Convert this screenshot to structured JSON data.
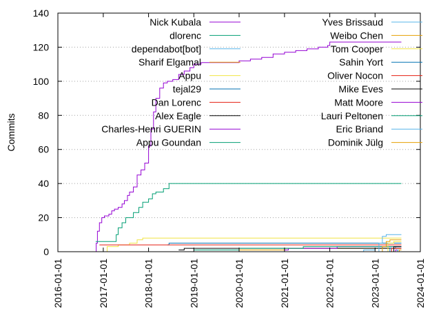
{
  "chart_data": {
    "type": "line",
    "title": "",
    "xlabel": "",
    "ylabel": "Commits",
    "xlim": [
      "2016-01-01",
      "2024-01-01"
    ],
    "ylim": [
      0,
      140
    ],
    "xticks": [
      "2016-01-01",
      "2017-01-01",
      "2018-01-01",
      "2019-01-01",
      "2020-01-01",
      "2021-01-01",
      "2022-01-01",
      "2023-01-01",
      "2024-01-01"
    ],
    "yticks": [
      0,
      20,
      40,
      60,
      80,
      100,
      120,
      140
    ],
    "grid": "horizontal dotted",
    "legend": "inside, top",
    "series": [
      {
        "name": "Nick Kubala",
        "color": "#9400d3",
        "points": [
          [
            "2016-11-01",
            0
          ],
          [
            "2016-11-05",
            5
          ],
          [
            "2016-11-15",
            12
          ],
          [
            "2016-12-01",
            17
          ],
          [
            "2016-12-20",
            20
          ],
          [
            "2017-01-10",
            21
          ],
          [
            "2017-02-15",
            22
          ],
          [
            "2017-03-10",
            24
          ],
          [
            "2017-04-01",
            25
          ],
          [
            "2017-05-01",
            26
          ],
          [
            "2017-06-01",
            28
          ],
          [
            "2017-06-20",
            30
          ],
          [
            "2017-07-15",
            33
          ],
          [
            "2017-08-01",
            35
          ],
          [
            "2017-09-01",
            38
          ],
          [
            "2017-10-01",
            45
          ],
          [
            "2017-11-01",
            48
          ],
          [
            "2017-12-01",
            52
          ],
          [
            "2018-01-01",
            62
          ],
          [
            "2018-01-20",
            72
          ],
          [
            "2018-02-10",
            82
          ],
          [
            "2018-03-01",
            90
          ],
          [
            "2018-04-01",
            96
          ],
          [
            "2018-05-01",
            99
          ],
          [
            "2018-06-01",
            100
          ],
          [
            "2018-07-15",
            101
          ],
          [
            "2018-09-01",
            104
          ],
          [
            "2018-10-15",
            106
          ],
          [
            "2018-12-01",
            108
          ],
          [
            "2019-01-01",
            110
          ],
          [
            "2019-03-01",
            111
          ],
          [
            "2019-06-01",
            111
          ],
          [
            "2019-10-01",
            111
          ],
          [
            "2020-01-01",
            112
          ],
          [
            "2020-04-01",
            113
          ],
          [
            "2020-07-01",
            114
          ],
          [
            "2020-10-01",
            116
          ],
          [
            "2021-01-01",
            117
          ],
          [
            "2021-04-01",
            118
          ],
          [
            "2021-07-01",
            119
          ],
          [
            "2021-10-01",
            120
          ],
          [
            "2021-12-15",
            121
          ],
          [
            "2022-01-01",
            123
          ],
          [
            "2022-05-01",
            123
          ],
          [
            "2023-03-01",
            123
          ],
          [
            "2023-08-01",
            123
          ]
        ]
      },
      {
        "name": "dlorenc",
        "color": "#009e73",
        "points": [
          [
            "2016-11-01",
            6
          ],
          [
            "2017-04-01",
            6
          ],
          [
            "2017-04-15",
            10
          ],
          [
            "2017-05-01",
            14
          ],
          [
            "2017-06-01",
            17
          ],
          [
            "2017-07-01",
            20
          ],
          [
            "2017-09-01",
            23
          ],
          [
            "2017-10-15",
            26
          ],
          [
            "2017-11-15",
            29
          ],
          [
            "2018-01-01",
            31
          ],
          [
            "2018-02-01",
            34
          ],
          [
            "2018-03-01",
            35
          ],
          [
            "2018-05-01",
            37
          ],
          [
            "2018-06-15",
            40
          ],
          [
            "2019-06-01",
            40
          ],
          [
            "2023-08-01",
            40
          ]
        ]
      },
      {
        "name": "dependabot[bot]",
        "color": "#56b4e9",
        "points": [
          [
            "2022-06-01",
            0
          ],
          [
            "2022-10-01",
            1
          ],
          [
            "2023-01-01",
            2
          ],
          [
            "2023-03-01",
            3
          ],
          [
            "2023-05-01",
            3
          ],
          [
            "2023-08-01",
            3
          ]
        ]
      },
      {
        "name": "Sharif Elgamal",
        "color": "#e69f00",
        "points": [
          [
            "2019-04-01",
            1
          ],
          [
            "2020-06-01",
            1
          ],
          [
            "2021-01-01",
            2
          ],
          [
            "2022-01-01",
            2
          ],
          [
            "2023-08-01",
            2
          ]
        ]
      },
      {
        "name": "Appu",
        "color": "#f0e442",
        "points": [
          [
            "2016-11-15",
            0
          ],
          [
            "2017-02-01",
            3
          ],
          [
            "2017-05-01",
            4
          ],
          [
            "2017-08-01",
            5
          ],
          [
            "2017-10-01",
            7
          ],
          [
            "2017-11-15",
            8
          ],
          [
            "2018-05-01",
            8
          ],
          [
            "2023-08-01",
            8
          ]
        ]
      },
      {
        "name": "tejal29",
        "color": "#0072b2",
        "points": [
          [
            "2018-06-01",
            4
          ],
          [
            "2018-06-15",
            5
          ],
          [
            "2019-06-01",
            5
          ],
          [
            "2023-08-01",
            5
          ]
        ]
      },
      {
        "name": "Dan Lorenc",
        "color": "#e51e10",
        "points": [
          [
            "2016-12-01",
            4
          ],
          [
            "2017-06-01",
            4
          ],
          [
            "2018-01-01",
            4
          ],
          [
            "2019-06-01",
            4
          ],
          [
            "2023-08-01",
            4
          ]
        ]
      },
      {
        "name": "Alex Eagle",
        "color": "#000000",
        "points": [
          [
            "2018-09-01",
            1
          ],
          [
            "2018-10-15",
            2
          ],
          [
            "2019-03-01",
            2
          ],
          [
            "2023-03-01",
            2
          ],
          [
            "2023-08-01",
            2
          ]
        ]
      },
      {
        "name": "Charles-Henri GUERIN",
        "color": "#9400d3",
        "points": [
          [
            "2021-01-01",
            1
          ],
          [
            "2021-02-01",
            2
          ],
          [
            "2022-03-01",
            3
          ],
          [
            "2023-08-01",
            3
          ]
        ]
      },
      {
        "name": "Appu Goundan",
        "color": "#009e73",
        "points": [
          [
            "2019-01-01",
            1
          ],
          [
            "2020-01-01",
            2
          ],
          [
            "2021-06-01",
            3
          ],
          [
            "2023-08-01",
            3
          ]
        ]
      },
      {
        "name": "Yves Brissaud",
        "color": "#56b4e9",
        "points": [
          [
            "2023-01-01",
            0
          ],
          [
            "2023-02-01",
            5
          ],
          [
            "2023-03-01",
            9
          ],
          [
            "2023-04-01",
            10
          ],
          [
            "2023-08-01",
            10
          ]
        ]
      },
      {
        "name": "Weibo Chen",
        "color": "#e69f00",
        "points": [
          [
            "2023-02-01",
            0
          ],
          [
            "2023-03-01",
            3
          ],
          [
            "2023-04-01",
            6
          ],
          [
            "2023-05-01",
            7
          ],
          [
            "2023-08-01",
            7
          ]
        ]
      },
      {
        "name": "Tom Cooper",
        "color": "#f0e442",
        "points": [
          [
            "2023-03-01",
            0
          ],
          [
            "2023-04-15",
            5
          ],
          [
            "2023-06-01",
            6
          ],
          [
            "2023-08-01",
            6
          ]
        ]
      },
      {
        "name": "Sahin Yort",
        "color": "#0072b2",
        "points": [
          [
            "2023-03-01",
            0
          ],
          [
            "2023-05-01",
            2
          ],
          [
            "2023-06-15",
            3
          ],
          [
            "2023-08-01",
            3
          ]
        ]
      },
      {
        "name": "Oliver Nocon",
        "color": "#e51e10",
        "points": [
          [
            "2023-04-01",
            0
          ],
          [
            "2023-05-15",
            2
          ],
          [
            "2023-08-01",
            2
          ]
        ]
      },
      {
        "name": "Mike Eves",
        "color": "#000000",
        "points": [
          [
            "2023-04-01",
            0
          ],
          [
            "2023-06-01",
            3
          ],
          [
            "2023-08-01",
            3
          ]
        ]
      },
      {
        "name": "Matt Moore",
        "color": "#9400d3",
        "points": [
          [
            "2023-05-01",
            0
          ],
          [
            "2023-06-15",
            1
          ],
          [
            "2023-08-01",
            1
          ]
        ]
      },
      {
        "name": "Lauri Peltonen",
        "color": "#009e73",
        "points": [
          [
            "2023-05-01",
            0
          ],
          [
            "2023-07-01",
            1
          ],
          [
            "2023-08-01",
            1
          ]
        ]
      },
      {
        "name": "Eric Briand",
        "color": "#56b4e9",
        "points": [
          [
            "2023-06-01",
            0
          ],
          [
            "2023-07-01",
            1
          ],
          [
            "2023-08-01",
            1
          ]
        ]
      },
      {
        "name": "Dominik Jülg",
        "color": "#e69f00",
        "points": [
          [
            "2023-06-01",
            0
          ],
          [
            "2023-07-15",
            1
          ],
          [
            "2023-08-01",
            1
          ]
        ]
      }
    ]
  }
}
